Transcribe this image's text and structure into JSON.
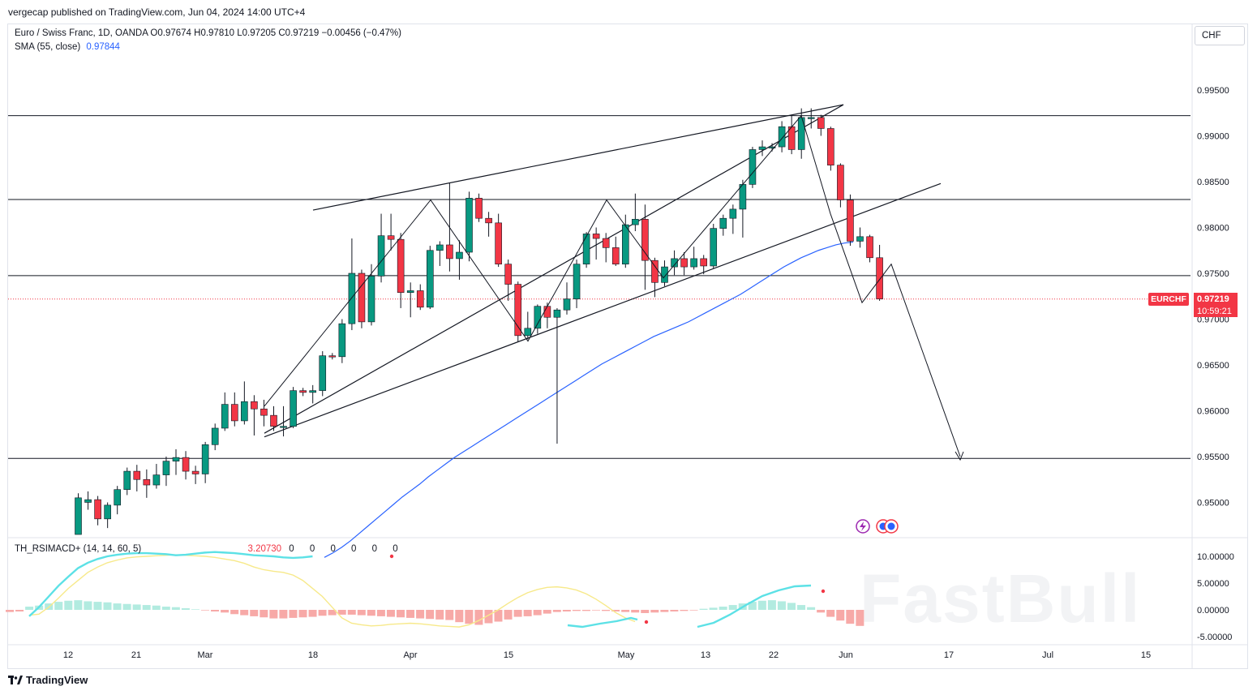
{
  "header": {
    "publisher_line": "vergecap published on TradingView.com, Jun 04, 2024 14:00 UTC+4",
    "legend_main": "Euro / Swiss Franc, 1D, OANDA  O0.97674  H0.97810  L0.97205  C0.97219  −0.00456 (−0.47%)",
    "legend_sma_label": "SMA (55, close)",
    "legend_sma_value": "0.97844",
    "legend_indicator": "TH_RSIMACD+ (14, 14, 60, 5)",
    "legend_indicator_value": "3.20730",
    "legend_indicator_dots": "0 0 0 0 0 0",
    "currency_button": "CHF"
  },
  "price_label": {
    "symbol": "EURCHF",
    "price": "0.97219",
    "countdown": "10:59:21"
  },
  "footer": {
    "brand": "TradingView",
    "watermark": "FastBull"
  },
  "colors": {
    "up": "#089981",
    "down": "#f23645",
    "sma": "#2962ff",
    "signal": "#f7e98a",
    "macd": "#5ce1e6"
  },
  "chart_data": [
    {
      "type": "candlestick",
      "symbol": "EURCHF",
      "timeframe": "1D",
      "x_ticks": [
        "12",
        "21",
        "Mar",
        "18",
        "Apr",
        "15",
        "May",
        "13",
        "22",
        "Jun",
        "17",
        "Jul",
        "15"
      ],
      "y_ticks": [
        "0.99500",
        "0.99000",
        "0.98500",
        "0.98000",
        "0.97500",
        "0.97000",
        "0.96500",
        "0.96000",
        "0.95500",
        "0.95000"
      ],
      "ylim": [
        0.9465,
        0.9985
      ],
      "candles": [
        [
          0.9465,
          0.9505,
          0.9465,
          0.951
        ],
        [
          0.95,
          0.9503,
          0.9492,
          0.9512
        ],
        [
          0.9503,
          0.9482,
          0.9475,
          0.9507
        ],
        [
          0.9482,
          0.9497,
          0.9472,
          0.95
        ],
        [
          0.9497,
          0.9514,
          0.9487,
          0.9518
        ],
        [
          0.9514,
          0.9534,
          0.9508,
          0.9538
        ],
        [
          0.9534,
          0.9525,
          0.9512,
          0.9541
        ],
        [
          0.9525,
          0.9519,
          0.9505,
          0.9536
        ],
        [
          0.9519,
          0.953,
          0.9515,
          0.9542
        ],
        [
          0.953,
          0.9545,
          0.9518,
          0.955
        ],
        [
          0.9545,
          0.9549,
          0.953,
          0.9558
        ],
        [
          0.9549,
          0.9534,
          0.9525,
          0.9556
        ],
        [
          0.9534,
          0.9531,
          0.952,
          0.954
        ],
        [
          0.9531,
          0.9563,
          0.9521,
          0.9566
        ],
        [
          0.9563,
          0.9581,
          0.9557,
          0.9586
        ],
        [
          0.9581,
          0.9607,
          0.9578,
          0.962
        ],
        [
          0.9607,
          0.9589,
          0.9583,
          0.962
        ],
        [
          0.9589,
          0.961,
          0.9585,
          0.9632
        ],
        [
          0.961,
          0.9602,
          0.9573,
          0.9617
        ],
        [
          0.9602,
          0.9595,
          0.9583,
          0.9612
        ],
        [
          0.9595,
          0.9583,
          0.9578,
          0.9605
        ],
        [
          0.9583,
          0.9583,
          0.9572,
          0.9605
        ],
        [
          0.9583,
          0.9622,
          0.9581,
          0.9626
        ],
        [
          0.9622,
          0.962,
          0.9616,
          0.9625
        ],
        [
          0.962,
          0.9622,
          0.9608,
          0.9628
        ],
        [
          0.9622,
          0.966,
          0.9616,
          0.9665
        ],
        [
          0.966,
          0.9659,
          0.9656,
          0.9663
        ],
        [
          0.9659,
          0.9695,
          0.9652,
          0.97
        ],
        [
          0.9695,
          0.975,
          0.9688,
          0.9788
        ],
        [
          0.975,
          0.9697,
          0.969,
          0.9754
        ],
        [
          0.9697,
          0.9747,
          0.9693,
          0.976
        ],
        [
          0.9747,
          0.9791,
          0.974,
          0.9815
        ],
        [
          0.9791,
          0.9787,
          0.9775,
          0.9815
        ],
        [
          0.9787,
          0.9729,
          0.9712,
          0.9794
        ],
        [
          0.9729,
          0.9731,
          0.9702,
          0.974
        ],
        [
          0.9731,
          0.9713,
          0.971,
          0.9738
        ],
        [
          0.9713,
          0.9775,
          0.9711,
          0.978
        ],
        [
          0.9775,
          0.9781,
          0.9758,
          0.9785
        ],
        [
          0.9781,
          0.9766,
          0.9752,
          0.9849
        ],
        [
          0.9766,
          0.9773,
          0.9743,
          0.9786
        ],
        [
          0.9773,
          0.9832,
          0.9763,
          0.9839
        ],
        [
          0.9832,
          0.981,
          0.9806,
          0.9837
        ],
        [
          0.981,
          0.9805,
          0.979,
          0.9817
        ],
        [
          0.9805,
          0.976,
          0.9757,
          0.9815
        ],
        [
          0.976,
          0.9738,
          0.972,
          0.9765
        ],
        [
          0.9738,
          0.9682,
          0.9675,
          0.9741
        ],
        [
          0.9682,
          0.969,
          0.9678,
          0.9708
        ],
        [
          0.969,
          0.9714,
          0.9684,
          0.9716
        ],
        [
          0.9714,
          0.9702,
          0.969,
          0.9718
        ],
        [
          0.9702,
          0.971,
          0.9564,
          0.9712
        ],
        [
          0.971,
          0.9722,
          0.9705,
          0.974
        ],
        [
          0.9722,
          0.976,
          0.9712,
          0.9765
        ],
        [
          0.976,
          0.9793,
          0.9756,
          0.9795
        ],
        [
          0.9793,
          0.9788,
          0.9765,
          0.98
        ],
        [
          0.9788,
          0.9778,
          0.9762,
          0.9794
        ],
        [
          0.9778,
          0.976,
          0.9758,
          0.979
        ],
        [
          0.976,
          0.9803,
          0.9756,
          0.9814
        ],
        [
          0.9803,
          0.9809,
          0.9796,
          0.9837
        ],
        [
          0.9809,
          0.9764,
          0.9732,
          0.9825
        ],
        [
          0.9764,
          0.974,
          0.9724,
          0.9767
        ],
        [
          0.974,
          0.9757,
          0.9736,
          0.9764
        ],
        [
          0.9757,
          0.9766,
          0.9748,
          0.9775
        ],
        [
          0.9766,
          0.9757,
          0.9748,
          0.9773
        ],
        [
          0.9757,
          0.9766,
          0.9754,
          0.9779
        ],
        [
          0.9766,
          0.9758,
          0.9749,
          0.977
        ],
        [
          0.9758,
          0.9799,
          0.9755,
          0.9804
        ],
        [
          0.9799,
          0.981,
          0.9791,
          0.9814
        ],
        [
          0.981,
          0.982,
          0.9793,
          0.9825
        ],
        [
          0.982,
          0.9847,
          0.9789,
          0.9852
        ],
        [
          0.9847,
          0.9885,
          0.9843,
          0.9888
        ],
        [
          0.9885,
          0.9888,
          0.9878,
          0.9895
        ],
        [
          0.9888,
          0.9888,
          0.9883,
          0.9892
        ],
        [
          0.9888,
          0.991,
          0.9882,
          0.9916
        ],
        [
          0.991,
          0.9885,
          0.988,
          0.9922
        ],
        [
          0.9885,
          0.992,
          0.9875,
          0.993
        ],
        [
          0.992,
          0.992,
          0.9908,
          0.993
        ],
        [
          0.992,
          0.9908,
          0.99,
          0.9923
        ],
        [
          0.9908,
          0.9868,
          0.9862,
          0.991
        ],
        [
          0.9868,
          0.983,
          0.9822,
          0.987
        ],
        [
          0.983,
          0.9785,
          0.978,
          0.9836
        ],
        [
          0.9785,
          0.979,
          0.9778,
          0.98
        ],
        [
          0.979,
          0.9767,
          0.9762,
          0.9792
        ],
        [
          0.9767,
          0.9722,
          0.972,
          0.9781
        ]
      ],
      "sma_55": [
        0.944,
        0.9445,
        0.9451,
        0.9458,
        0.9466,
        0.9474,
        0.9482,
        0.949,
        0.9498,
        0.9506,
        0.9513,
        0.952,
        0.9528,
        0.9535,
        0.9542,
        0.9549,
        0.9555,
        0.9561,
        0.9567,
        0.9573,
        0.9579,
        0.9585,
        0.9591,
        0.9597,
        0.9603,
        0.9609,
        0.9615,
        0.9621,
        0.9627,
        0.9633,
        0.9639,
        0.9645,
        0.9651,
        0.9656,
        0.9661,
        0.9666,
        0.9671,
        0.9676,
        0.9681,
        0.9685,
        0.9689,
        0.9693,
        0.9697,
        0.9702,
        0.9707,
        0.9712,
        0.9717,
        0.9722,
        0.9727,
        0.9733,
        0.9739,
        0.9745,
        0.9751,
        0.9757,
        0.9762,
        0.9767,
        0.9771,
        0.9775,
        0.9778,
        0.9781,
        0.9783,
        0.9784
      ],
      "horizontal_levels": [
        0.9922,
        0.98305,
        0.97475,
        0.9548
      ],
      "trend_lines": [
        {
          "from": [
            0.0,
            0.95755
          ],
          "to": [
            0.8195,
            0.9934
          ]
        },
        {
          "from": [
            0.28,
            0.9819
          ],
          "to": [
            0.5488,
            0.9934
          ]
        },
        {
          "from": [
            0.0,
            0.95715
          ],
          "to": [
            0.97,
            0.9848
          ]
        }
      ],
      "zigzag": [
        0.9605,
        0.983,
        0.9676,
        0.983,
        0.9745,
        0.9922,
        0.9815,
        0.9718,
        0.976,
        0.955
      ],
      "last_price": 0.97219
    },
    {
      "type": "line",
      "name": "TH_RSIMACD+ (14, 14, 60, 5)",
      "y_ticks": [
        "10.00000",
        "5.00000",
        "0.00000",
        "-5.00000"
      ],
      "ylim": [
        -6,
        12
      ],
      "macd_line": [
        -1.2,
        0.5,
        2.5,
        4.5,
        6.2,
        7.8,
        8.8,
        9.5,
        10,
        10.3,
        10.5,
        10.6,
        10.6,
        10.5,
        10.4,
        10.2,
        10.3,
        10.5,
        10.7,
        10.8,
        10.7,
        10.6,
        10.4,
        10.2,
        10.1,
        10,
        9.8,
        9.7,
        9.8,
        10
      ],
      "signal_line": [
        -1,
        -0.8,
        0.5,
        2.2,
        4,
        5.5,
        7,
        8,
        8.8,
        9.3,
        9.7,
        9.9,
        10,
        10.1,
        10.2,
        10.3,
        10.2,
        10.1,
        10,
        9.8,
        9.5,
        9.2,
        8.7,
        8,
        7.5,
        7.2,
        7,
        6.5,
        5.5,
        4,
        2.5,
        0.5,
        -1.5,
        -2.5,
        -2.8,
        -3,
        -2.9,
        -2.7,
        -2.6,
        -2.5,
        -2.6,
        -2.8,
        -3,
        -3.1,
        -3.2,
        -2.8,
        -2,
        -1,
        0,
        1.2,
        2.3,
        3.2,
        3.8,
        4.2,
        4.3,
        4.1,
        3.7,
        3,
        2,
        0.8,
        -0.5,
        -1.5,
        -2.2
      ],
      "histogram": [
        -0.4,
        -0.3,
        0.6,
        0.8,
        1.2,
        1.5,
        1.7,
        1.8,
        1.6,
        1.5,
        1.4,
        1.2,
        1.1,
        1,
        0.9,
        0.8,
        0.6,
        0.5,
        0.3,
        0.1,
        -0.1,
        -0.3,
        -0.5,
        -0.8,
        -1,
        -1.2,
        -1.4,
        -1.6,
        -1.6,
        -1.5,
        -1.4,
        -1.3,
        -1.1,
        -1,
        -0.9,
        -0.9,
        -1,
        -1.1,
        -1.2,
        -1.3,
        -1.4,
        -1.5,
        -1.6,
        -1.7,
        -1.8,
        -1.9,
        -2.3,
        -2.6,
        -2.8,
        -2.5,
        -2.2,
        -1.8,
        -1.3,
        -1.2,
        -1,
        -0.7,
        -0.4,
        -0.3,
        -0.2,
        -0.2,
        -0.1,
        -0.2,
        -0.3,
        -0.4,
        -0.5,
        -0.6,
        -0.5,
        -0.4,
        -0.3,
        -0.2,
        -0.1,
        0.2,
        0.4,
        0.6,
        0.9,
        1.2,
        1.5,
        1.7,
        1.8,
        1.6,
        1.3,
        0.9,
        0.5,
        -0.5,
        -1.3,
        -2,
        -2.6,
        -3
      ]
    }
  ]
}
